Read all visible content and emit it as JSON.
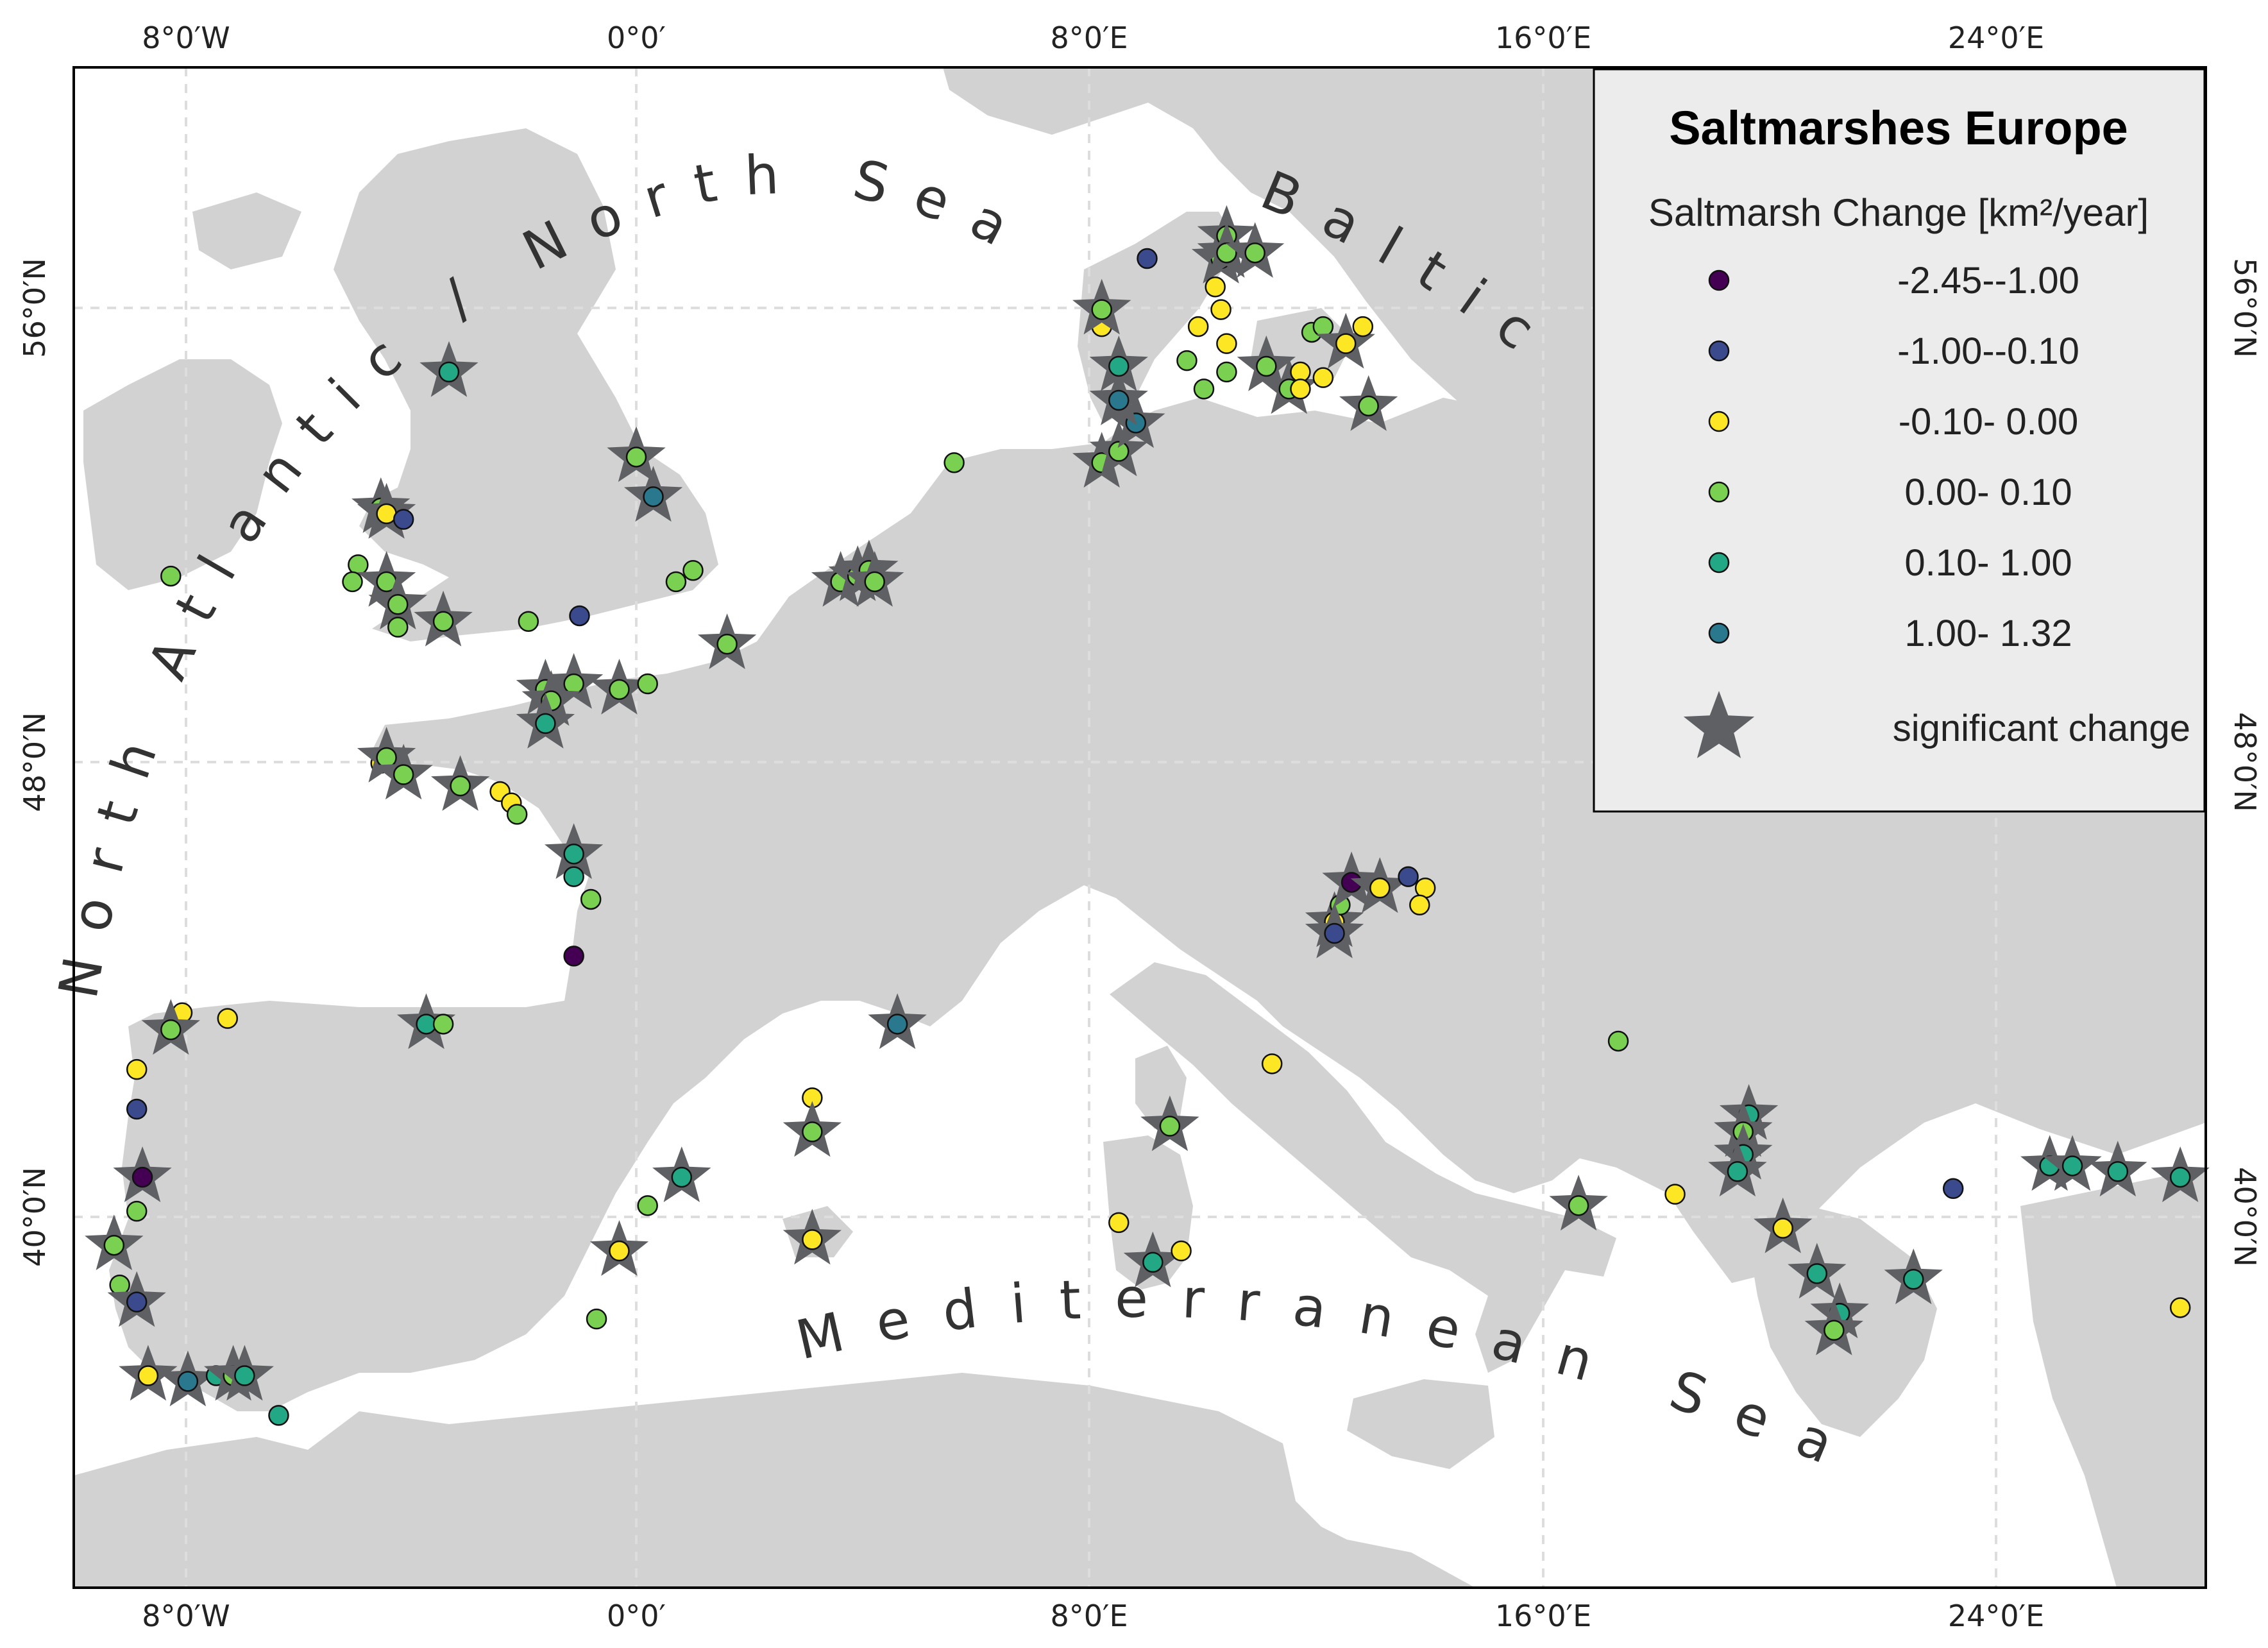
{
  "legend": {
    "title": "Saltmarshes Europe",
    "subtitle": "Saltmarsh Change [km²/year]",
    "classes": [
      {
        "label": "-2.45--1.00",
        "color": "#440154"
      },
      {
        "label": "-1.00--0.10",
        "color": "#3b4a8c"
      },
      {
        "label": "-0.10- 0.00",
        "color": "#fde725"
      },
      {
        "label": "0.00- 0.10",
        "color": "#7ad151"
      },
      {
        "label": "0.10- 1.00",
        "color": "#22a884"
      },
      {
        "label": "1.00- 1.32",
        "color": "#2a788e"
      }
    ],
    "significant_label": "significant change",
    "star_color": "#5f6063"
  },
  "axes": {
    "x_ticks": [
      "8°0′W",
      "0°0′",
      "8°0′E",
      "16°0′E",
      "24°0′E"
    ],
    "y_ticks": [
      "56°0′N",
      "48°0′N",
      "40°0′N"
    ]
  },
  "seas": {
    "atlantic": "North Atlantic / North Sea",
    "baltic": "Baltic Sea",
    "mediterranean": "Mediterranean Sea"
  },
  "colors": {
    "land": "#d2d2d2",
    "sea": "#ffffff",
    "grid": "#dddddd"
  },
  "sites": [
    {
      "lon": -8.2,
      "lat": 51.3,
      "class": 3,
      "sig": false
    },
    {
      "lon": -4.5,
      "lat": 52.5,
      "class": 3,
      "sig": true
    },
    {
      "lon": -4.4,
      "lat": 52.4,
      "class": 2,
      "sig": true
    },
    {
      "lon": -4.1,
      "lat": 52.3,
      "class": 1,
      "sig": false
    },
    {
      "lon": -3.3,
      "lat": 54.9,
      "class": 4,
      "sig": true
    },
    {
      "lon": -4.9,
      "lat": 51.5,
      "class": 3,
      "sig": false
    },
    {
      "lon": -5.0,
      "lat": 51.2,
      "class": 3,
      "sig": false
    },
    {
      "lon": -4.4,
      "lat": 51.2,
      "class": 3,
      "sig": true
    },
    {
      "lon": -4.2,
      "lat": 50.8,
      "class": 3,
      "sig": true
    },
    {
      "lon": -4.2,
      "lat": 50.4,
      "class": 3,
      "sig": false
    },
    {
      "lon": -3.4,
      "lat": 50.5,
      "class": 3,
      "sig": true
    },
    {
      "lon": -1.9,
      "lat": 50.5,
      "class": 3,
      "sig": false
    },
    {
      "lon": -1.0,
      "lat": 50.6,
      "class": 1,
      "sig": false
    },
    {
      "lon": 0.0,
      "lat": 53.4,
      "class": 3,
      "sig": true
    },
    {
      "lon": 0.3,
      "lat": 52.7,
      "class": 5,
      "sig": true
    },
    {
      "lon": 0.7,
      "lat": 51.2,
      "class": 3,
      "sig": false
    },
    {
      "lon": 1.0,
      "lat": 51.4,
      "class": 3,
      "sig": false
    },
    {
      "lon": 1.6,
      "lat": 50.1,
      "class": 3,
      "sig": true
    },
    {
      "lon": -1.6,
      "lat": 49.3,
      "class": 3,
      "sig": true
    },
    {
      "lon": -1.1,
      "lat": 49.4,
      "class": 3,
      "sig": true
    },
    {
      "lon": -0.3,
      "lat": 49.3,
      "class": 3,
      "sig": true
    },
    {
      "lon": 0.2,
      "lat": 49.4,
      "class": 3,
      "sig": false
    },
    {
      "lon": -1.5,
      "lat": 49.1,
      "class": 3,
      "sig": true
    },
    {
      "lon": -1.6,
      "lat": 48.7,
      "class": 4,
      "sig": true
    },
    {
      "lon": -4.5,
      "lat": 48.0,
      "class": 2,
      "sig": false
    },
    {
      "lon": -4.4,
      "lat": 48.1,
      "class": 3,
      "sig": true
    },
    {
      "lon": -4.1,
      "lat": 47.8,
      "class": 3,
      "sig": true
    },
    {
      "lon": -3.1,
      "lat": 47.6,
      "class": 3,
      "sig": true
    },
    {
      "lon": -2.4,
      "lat": 47.5,
      "class": 2,
      "sig": false
    },
    {
      "lon": -2.2,
      "lat": 47.3,
      "class": 2,
      "sig": false
    },
    {
      "lon": -2.1,
      "lat": 47.1,
      "class": 3,
      "sig": false
    },
    {
      "lon": -1.1,
      "lat": 46.4,
      "class": 4,
      "sig": true
    },
    {
      "lon": -1.1,
      "lat": 46.0,
      "class": 4,
      "sig": false
    },
    {
      "lon": -0.8,
      "lat": 45.6,
      "class": 3,
      "sig": false
    },
    {
      "lon": -1.1,
      "lat": 44.6,
      "class": 0,
      "sig": false
    },
    {
      "lon": -3.7,
      "lat": 43.4,
      "class": 4,
      "sig": true
    },
    {
      "lon": -3.4,
      "lat": 43.4,
      "class": 3,
      "sig": false
    },
    {
      "lon": -8.0,
      "lat": 43.6,
      "class": 2,
      "sig": false
    },
    {
      "lon": -8.2,
      "lat": 43.3,
      "class": 3,
      "sig": true
    },
    {
      "lon": -7.2,
      "lat": 43.5,
      "class": 2,
      "sig": false
    },
    {
      "lon": -8.8,
      "lat": 42.6,
      "class": 2,
      "sig": false
    },
    {
      "lon": -8.8,
      "lat": 41.9,
      "class": 1,
      "sig": false
    },
    {
      "lon": -8.7,
      "lat": 40.7,
      "class": 0,
      "sig": true
    },
    {
      "lon": -8.8,
      "lat": 40.1,
      "class": 3,
      "sig": false
    },
    {
      "lon": -9.2,
      "lat": 39.5,
      "class": 3,
      "sig": true
    },
    {
      "lon": -9.1,
      "lat": 38.8,
      "class": 3,
      "sig": false
    },
    {
      "lon": -8.8,
      "lat": 38.5,
      "class": 1,
      "sig": true
    },
    {
      "lon": -8.6,
      "lat": 37.2,
      "class": 2,
      "sig": true
    },
    {
      "lon": -7.9,
      "lat": 37.1,
      "class": 5,
      "sig": true
    },
    {
      "lon": -7.4,
      "lat": 37.2,
      "class": 4,
      "sig": false
    },
    {
      "lon": -7.1,
      "lat": 37.2,
      "class": 3,
      "sig": true
    },
    {
      "lon": -6.9,
      "lat": 37.2,
      "class": 4,
      "sig": true
    },
    {
      "lon": -6.3,
      "lat": 36.5,
      "class": 4,
      "sig": false
    },
    {
      "lon": -0.3,
      "lat": 39.4,
      "class": 2,
      "sig": true
    },
    {
      "lon": 0.2,
      "lat": 40.2,
      "class": 3,
      "sig": false
    },
    {
      "lon": 0.8,
      "lat": 40.7,
      "class": 4,
      "sig": true
    },
    {
      "lon": -0.7,
      "lat": 38.2,
      "class": 3,
      "sig": false
    },
    {
      "lon": 3.1,
      "lat": 42.1,
      "class": 2,
      "sig": false
    },
    {
      "lon": 3.1,
      "lat": 41.5,
      "class": 3,
      "sig": true
    },
    {
      "lon": 3.1,
      "lat": 39.6,
      "class": 2,
      "sig": true
    },
    {
      "lon": 4.6,
      "lat": 43.4,
      "class": 5,
      "sig": true
    },
    {
      "lon": 3.6,
      "lat": 51.2,
      "class": 3,
      "sig": true
    },
    {
      "lon": 3.9,
      "lat": 51.3,
      "class": 3,
      "sig": true
    },
    {
      "lon": 4.1,
      "lat": 51.4,
      "class": 3,
      "sig": true
    },
    {
      "lon": 4.2,
      "lat": 51.2,
      "class": 3,
      "sig": true
    },
    {
      "lon": 5.6,
      "lat": 53.3,
      "class": 3,
      "sig": false
    },
    {
      "lon": 8.2,
      "lat": 53.3,
      "class": 3,
      "sig": true
    },
    {
      "lon": 8.5,
      "lat": 53.5,
      "class": 3,
      "sig": true
    },
    {
      "lon": 8.8,
      "lat": 54.0,
      "class": 5,
      "sig": true
    },
    {
      "lon": 8.5,
      "lat": 54.4,
      "class": 5,
      "sig": true
    },
    {
      "lon": 8.5,
      "lat": 55.0,
      "class": 4,
      "sig": true
    },
    {
      "lon": 8.2,
      "lat": 55.7,
      "class": 2,
      "sig": false
    },
    {
      "lon": 8.2,
      "lat": 56.0,
      "class": 3,
      "sig": true
    },
    {
      "lon": 9.0,
      "lat": 56.9,
      "class": 1,
      "sig": false
    },
    {
      "lon": 10.3,
      "lat": 56.9,
      "class": 3,
      "sig": true
    },
    {
      "lon": 10.4,
      "lat": 57.3,
      "class": 3,
      "sig": true
    },
    {
      "lon": 10.4,
      "lat": 57.0,
      "class": 3,
      "sig": true
    },
    {
      "lon": 10.9,
      "lat": 57.0,
      "class": 3,
      "sig": true
    },
    {
      "lon": 10.2,
      "lat": 56.4,
      "class": 2,
      "sig": false
    },
    {
      "lon": 10.3,
      "lat": 56.0,
      "class": 2,
      "sig": false
    },
    {
      "lon": 9.9,
      "lat": 55.7,
      "class": 2,
      "sig": false
    },
    {
      "lon": 10.4,
      "lat": 55.4,
      "class": 2,
      "sig": false
    },
    {
      "lon": 9.7,
      "lat": 55.1,
      "class": 3,
      "sig": false
    },
    {
      "lon": 10.0,
      "lat": 54.6,
      "class": 3,
      "sig": false
    },
    {
      "lon": 10.4,
      "lat": 54.9,
      "class": 3,
      "sig": false
    },
    {
      "lon": 11.1,
      "lat": 55.0,
      "class": 3,
      "sig": true
    },
    {
      "lon": 11.5,
      "lat": 54.6,
      "class": 3,
      "sig": true
    },
    {
      "lon": 11.7,
      "lat": 54.9,
      "class": 2,
      "sig": false
    },
    {
      "lon": 11.7,
      "lat": 54.6,
      "class": 2,
      "sig": false
    },
    {
      "lon": 12.1,
      "lat": 54.8,
      "class": 2,
      "sig": false
    },
    {
      "lon": 11.9,
      "lat": 55.6,
      "class": 3,
      "sig": false
    },
    {
      "lon": 12.1,
      "lat": 55.7,
      "class": 3,
      "sig": false
    },
    {
      "lon": 12.5,
      "lat": 55.4,
      "class": 2,
      "sig": true
    },
    {
      "lon": 12.8,
      "lat": 55.7,
      "class": 2,
      "sig": false
    },
    {
      "lon": 12.9,
      "lat": 54.3,
      "class": 3,
      "sig": true
    },
    {
      "lon": 12.3,
      "lat": 45.2,
      "class": 2,
      "sig": true
    },
    {
      "lon": 12.4,
      "lat": 45.5,
      "class": 3,
      "sig": false
    },
    {
      "lon": 12.3,
      "lat": 45.0,
      "class": 1,
      "sig": true
    },
    {
      "lon": 12.6,
      "lat": 45.9,
      "class": 0,
      "sig": true
    },
    {
      "lon": 13.1,
      "lat": 45.8,
      "class": 2,
      "sig": true
    },
    {
      "lon": 13.6,
      "lat": 46.0,
      "class": 1,
      "sig": false
    },
    {
      "lon": 13.9,
      "lat": 45.8,
      "class": 2,
      "sig": false
    },
    {
      "lon": 13.8,
      "lat": 45.5,
      "class": 2,
      "sig": false
    },
    {
      "lon": 11.2,
      "lat": 42.7,
      "class": 2,
      "sig": false
    },
    {
      "lon": 9.4,
      "lat": 41.6,
      "class": 3,
      "sig": true
    },
    {
      "lon": 8.5,
      "lat": 39.9,
      "class": 2,
      "sig": false
    },
    {
      "lon": 9.1,
      "lat": 39.2,
      "class": 4,
      "sig": true
    },
    {
      "lon": 9.6,
      "lat": 39.4,
      "class": 2,
      "sig": false
    },
    {
      "lon": 16.6,
      "lat": 40.2,
      "class": 3,
      "sig": true
    },
    {
      "lon": 17.3,
      "lat": 43.1,
      "class": 3,
      "sig": false
    },
    {
      "lon": 18.3,
      "lat": 40.4,
      "class": 2,
      "sig": false
    },
    {
      "lon": 19.6,
      "lat": 41.8,
      "class": 4,
      "sig": true
    },
    {
      "lon": 19.5,
      "lat": 41.5,
      "class": 3,
      "sig": true
    },
    {
      "lon": 19.5,
      "lat": 41.1,
      "class": 4,
      "sig": true
    },
    {
      "lon": 19.4,
      "lat": 40.8,
      "class": 4,
      "sig": true
    },
    {
      "lon": 20.2,
      "lat": 39.8,
      "class": 2,
      "sig": true
    },
    {
      "lon": 20.8,
      "lat": 39.0,
      "class": 4,
      "sig": true
    },
    {
      "lon": 21.2,
      "lat": 38.3,
      "class": 4,
      "sig": true
    },
    {
      "lon": 21.1,
      "lat": 38.0,
      "class": 3,
      "sig": true
    },
    {
      "lon": 22.5,
      "lat": 38.9,
      "class": 4,
      "sig": true
    },
    {
      "lon": 23.2,
      "lat": 40.5,
      "class": 1,
      "sig": false
    },
    {
      "lon": 24.9,
      "lat": 40.9,
      "class": 4,
      "sig": true
    },
    {
      "lon": 25.3,
      "lat": 40.9,
      "class": 4,
      "sig": true
    },
    {
      "lon": 26.1,
      "lat": 40.8,
      "class": 4,
      "sig": true
    },
    {
      "lon": 27.2,
      "lat": 40.7,
      "class": 4,
      "sig": true
    },
    {
      "lon": 27.2,
      "lat": 38.4,
      "class": 2,
      "sig": false
    }
  ]
}
